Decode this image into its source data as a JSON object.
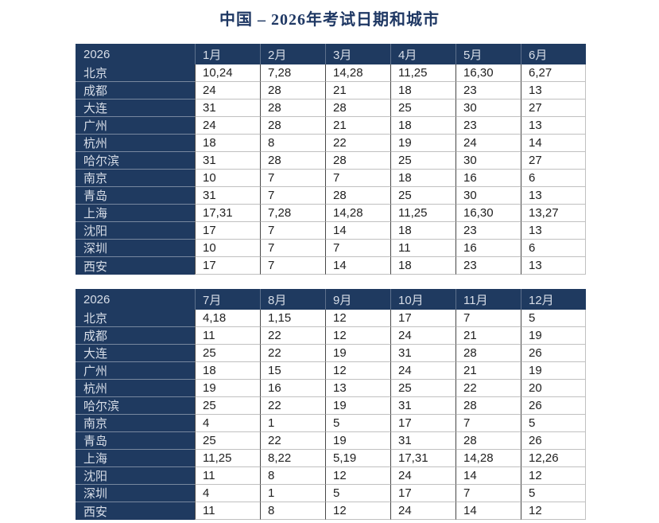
{
  "title": "中国 – 2026年考试日期和城市",
  "colors": {
    "page_bg": "#ffffff",
    "navy": "#1f3a60",
    "title_color": "#1f3864",
    "header_text": "#d8dee8",
    "data_text": "#212121",
    "h_border": "#c0c0c0",
    "v_border": "#474747"
  },
  "tables": [
    {
      "year": "2026",
      "months": [
        "1月",
        "2月",
        "3月",
        "4月",
        "5月",
        "6月"
      ],
      "rows": [
        {
          "city": "北京",
          "values": [
            "10,24",
            "7,28",
            "14,28",
            "11,25",
            "16,30",
            "6,27"
          ]
        },
        {
          "city": "成都",
          "values": [
            "24",
            "28",
            "21",
            "18",
            "23",
            "13"
          ]
        },
        {
          "city": "大连",
          "values": [
            "31",
            "28",
            "28",
            "25",
            "30",
            "27"
          ]
        },
        {
          "city": "广州",
          "values": [
            "24",
            "28",
            "21",
            "18",
            "23",
            "13"
          ]
        },
        {
          "city": "杭州",
          "values": [
            "18",
            "8",
            "22",
            "19",
            "24",
            "14"
          ]
        },
        {
          "city": "哈尔滨",
          "values": [
            "31",
            "28",
            "28",
            "25",
            "30",
            "27"
          ]
        },
        {
          "city": "南京",
          "values": [
            "10",
            "7",
            "7",
            "18",
            "16",
            "6"
          ]
        },
        {
          "city": "青岛",
          "values": [
            "31",
            "7",
            "28",
            "25",
            "30",
            "13"
          ]
        },
        {
          "city": "上海",
          "values": [
            "17,31",
            "7,28",
            "14,28",
            "11,25",
            "16,30",
            "13,27"
          ]
        },
        {
          "city": "沈阳",
          "values": [
            "17",
            "7",
            "14",
            "18",
            "23",
            "13"
          ]
        },
        {
          "city": "深圳",
          "values": [
            "10",
            "7",
            "7",
            "11",
            "16",
            "6"
          ]
        },
        {
          "city": "西安",
          "values": [
            "17",
            "7",
            "14",
            "18",
            "23",
            "13"
          ]
        }
      ]
    },
    {
      "year": "2026",
      "months": [
        "7月",
        "8月",
        "9月",
        "10月",
        "11月",
        "12月"
      ],
      "rows": [
        {
          "city": "北京",
          "values": [
            "4,18",
            "1,15",
            "12",
            "17",
            "7",
            "5"
          ]
        },
        {
          "city": "成都",
          "values": [
            "11",
            "22",
            "12",
            "24",
            "21",
            "19"
          ]
        },
        {
          "city": "大连",
          "values": [
            "25",
            "22",
            "19",
            "31",
            "28",
            "26"
          ]
        },
        {
          "city": "广州",
          "values": [
            "18",
            "15",
            "12",
            "24",
            "21",
            "19"
          ]
        },
        {
          "city": "杭州",
          "values": [
            "19",
            "16",
            "13",
            "25",
            "22",
            "20"
          ]
        },
        {
          "city": "哈尔滨",
          "values": [
            "25",
            "22",
            "19",
            "31",
            "28",
            "26"
          ]
        },
        {
          "city": "南京",
          "values": [
            "4",
            "1",
            "5",
            "17",
            "7",
            "5"
          ]
        },
        {
          "city": "青岛",
          "values": [
            "25",
            "22",
            "19",
            "31",
            "28",
            "26"
          ]
        },
        {
          "city": "上海",
          "values": [
            "11,25",
            "8,22",
            "5,19",
            "17,31",
            "14,28",
            "12,26"
          ]
        },
        {
          "city": "沈阳",
          "values": [
            "11",
            "8",
            "12",
            "24",
            "14",
            "12"
          ]
        },
        {
          "city": "深圳",
          "values": [
            "4",
            "1",
            "5",
            "17",
            "7",
            "5"
          ]
        },
        {
          "city": "西安",
          "values": [
            "11",
            "8",
            "12",
            "24",
            "14",
            "12"
          ]
        }
      ]
    }
  ]
}
